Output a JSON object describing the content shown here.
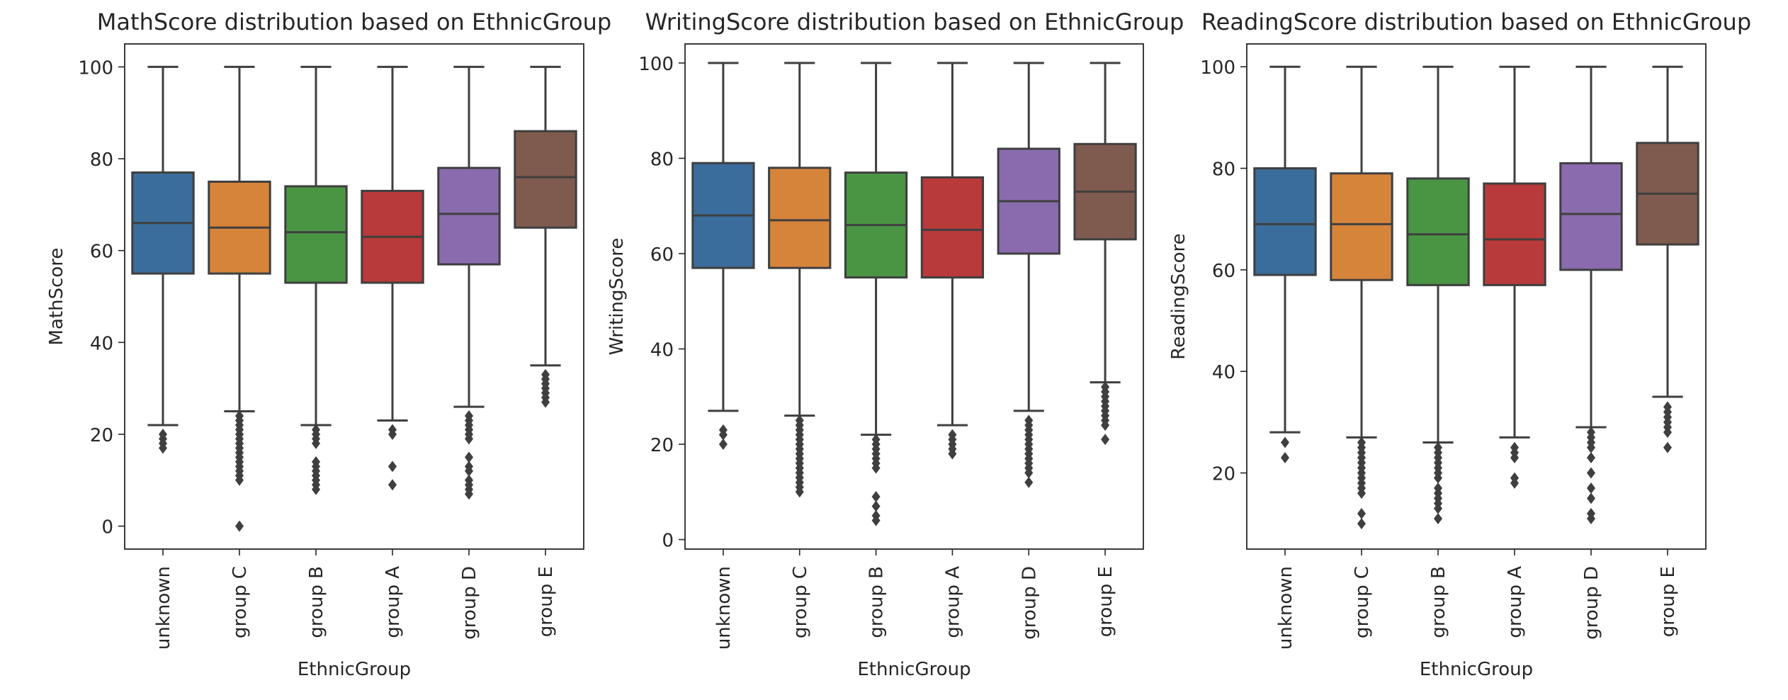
{
  "chart_data": [
    {
      "type": "box",
      "title": "MathScore distribution based on EthnicGroup",
      "xlabel": "EthnicGroup",
      "ylabel": "MathScore",
      "categories": [
        "unknown",
        "group C",
        "group B",
        "group A",
        "group D",
        "group E"
      ],
      "colors": [
        "#3a6d9b",
        "#d7843b",
        "#4a9544",
        "#b83a3b",
        "#8a6cae",
        "#7f5a4f"
      ],
      "ylim": [
        -5,
        105
      ],
      "yticks": [
        "0",
        "20",
        "40",
        "60",
        "80",
        "100"
      ],
      "boxes": [
        {
          "q1": 55,
          "median": 66,
          "q3": 77,
          "whisker_low": 22,
          "whisker_high": 100,
          "outliers": [
            20,
            19,
            18,
            17
          ]
        },
        {
          "q1": 55,
          "median": 65,
          "q3": 75,
          "whisker_low": 25,
          "whisker_high": 100,
          "outliers": [
            24,
            23,
            22,
            21,
            20,
            19,
            18,
            17,
            16,
            15,
            14,
            13,
            12,
            11,
            10,
            0
          ]
        },
        {
          "q1": 53,
          "median": 64,
          "q3": 74,
          "whisker_low": 22,
          "whisker_high": 100,
          "outliers": [
            21,
            20,
            19,
            18,
            14,
            13,
            12,
            11,
            10,
            9,
            8
          ]
        },
        {
          "q1": 53,
          "median": 63,
          "q3": 73,
          "whisker_low": 23,
          "whisker_high": 100,
          "outliers": [
            21,
            20,
            13,
            9
          ]
        },
        {
          "q1": 57,
          "median": 68,
          "q3": 78,
          "whisker_low": 26,
          "whisker_high": 100,
          "outliers": [
            24,
            23,
            22,
            21,
            20,
            19,
            15,
            13,
            12,
            10,
            9,
            8,
            7
          ]
        },
        {
          "q1": 65,
          "median": 76,
          "q3": 86,
          "whisker_low": 35,
          "whisker_high": 100,
          "outliers": [
            33,
            32,
            31,
            30,
            29,
            28,
            27
          ]
        }
      ]
    },
    {
      "type": "box",
      "title": "WritingScore distribution based on EthnicGroup",
      "xlabel": "EthnicGroup",
      "ylabel": "WritingScore",
      "categories": [
        "unknown",
        "group C",
        "group B",
        "group A",
        "group D",
        "group E"
      ],
      "colors": [
        "#3a6d9b",
        "#d7843b",
        "#4a9544",
        "#b83a3b",
        "#8a6cae",
        "#7f5a4f"
      ],
      "ylim": [
        -2,
        104
      ],
      "yticks": [
        "0",
        "20",
        "40",
        "60",
        "80",
        "100"
      ],
      "boxes": [
        {
          "q1": 57,
          "median": 68,
          "q3": 79,
          "whisker_low": 27,
          "whisker_high": 100,
          "outliers": [
            23,
            22,
            20
          ]
        },
        {
          "q1": 57,
          "median": 67,
          "q3": 78,
          "whisker_low": 26,
          "whisker_high": 100,
          "outliers": [
            25,
            24,
            23,
            22,
            21,
            20,
            19,
            18,
            17,
            16,
            15,
            14,
            13,
            12,
            11,
            10
          ]
        },
        {
          "q1": 55,
          "median": 66,
          "q3": 77,
          "whisker_low": 22,
          "whisker_high": 100,
          "outliers": [
            21,
            20,
            19,
            18,
            17,
            16,
            15,
            9,
            7,
            5,
            4
          ]
        },
        {
          "q1": 55,
          "median": 65,
          "q3": 76,
          "whisker_low": 24,
          "whisker_high": 100,
          "outliers": [
            22,
            21,
            20,
            19,
            18
          ]
        },
        {
          "q1": 60,
          "median": 71,
          "q3": 82,
          "whisker_low": 27,
          "whisker_high": 100,
          "outliers": [
            25,
            24,
            23,
            22,
            21,
            20,
            19,
            18,
            17,
            16,
            15,
            14,
            12
          ]
        },
        {
          "q1": 63,
          "median": 73,
          "q3": 83,
          "whisker_low": 33,
          "whisker_high": 100,
          "outliers": [
            32,
            31,
            30,
            29,
            28,
            27,
            26,
            25,
            24,
            21
          ]
        }
      ]
    },
    {
      "type": "box",
      "title": "ReadingScore distribution based on EthnicGroup",
      "xlabel": "EthnicGroup",
      "ylabel": "ReadingScore",
      "categories": [
        "unknown",
        "group C",
        "group B",
        "group A",
        "group D",
        "group E"
      ],
      "colors": [
        "#3a6d9b",
        "#d7843b",
        "#4a9544",
        "#b83a3b",
        "#8a6cae",
        "#7f5a4f"
      ],
      "ylim": [
        5,
        104.5
      ],
      "yticks": [
        "20",
        "40",
        "60",
        "80",
        "100"
      ],
      "boxes": [
        {
          "q1": 59,
          "median": 69,
          "q3": 80,
          "whisker_low": 28,
          "whisker_high": 100,
          "outliers": [
            26,
            23
          ]
        },
        {
          "q1": 58,
          "median": 69,
          "q3": 79,
          "whisker_low": 27,
          "whisker_high": 100,
          "outliers": [
            26,
            25,
            24,
            23,
            22,
            21,
            20,
            19,
            18,
            17,
            16,
            12,
            10
          ]
        },
        {
          "q1": 57,
          "median": 67,
          "q3": 78,
          "whisker_low": 26,
          "whisker_high": 100,
          "outliers": [
            25,
            24,
            23,
            22,
            21,
            20,
            19,
            17,
            16,
            15,
            14,
            13,
            11
          ]
        },
        {
          "q1": 57,
          "median": 66,
          "q3": 77,
          "whisker_low": 27,
          "whisker_high": 100,
          "outliers": [
            25,
            24,
            23,
            19,
            18
          ]
        },
        {
          "q1": 60,
          "median": 71,
          "q3": 81,
          "whisker_low": 29,
          "whisker_high": 100,
          "outliers": [
            28,
            27,
            26,
            25,
            23,
            20,
            17,
            15,
            12,
            11
          ]
        },
        {
          "q1": 65,
          "median": 75,
          "q3": 85,
          "whisker_low": 35,
          "whisker_high": 100,
          "outliers": [
            33,
            32,
            31,
            30,
            29,
            28,
            25
          ]
        }
      ]
    }
  ]
}
